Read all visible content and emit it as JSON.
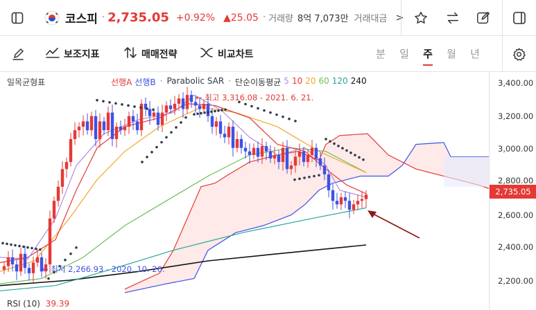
{
  "header": {
    "sidebar_icon": "sidebar-toggle-icon",
    "flag_icon": "korea-flag-icon",
    "symbol": "코스피",
    "price": "2,735.05",
    "change_pct": "+0.92%",
    "change_abs": "▲25.05",
    "sep": "·",
    "volume_label": "거래량",
    "volume_value": "8억 7,073만",
    "amount_label": "거래대금",
    "more_arrow": ">",
    "icons": [
      "star-icon",
      "compare-arrows-icon",
      "edit-icon",
      "panel-icon"
    ]
  },
  "toolbar": {
    "tools": [
      {
        "icon": "pencil-icon",
        "label": ""
      },
      {
        "icon": "indicator-icon",
        "label": "보조지표"
      },
      {
        "icon": "trade-strategy-icon",
        "label": "매매전략"
      },
      {
        "icon": "compare-icon",
        "label": "비교차트"
      }
    ],
    "periods": [
      "분",
      "일",
      "주",
      "월",
      "년"
    ],
    "active_period": "주",
    "settings_icon": "gear-icon"
  },
  "chart": {
    "title": "일목균형표",
    "legend": {
      "ichimoku_a": "선행A",
      "ichimoku_b": "선행B",
      "sep1": "·",
      "sar": "Parabolic SAR",
      "sep2": "·",
      "ma_label": "단순이동평균",
      "ma_periods": [
        "5",
        "10",
        "20",
        "60",
        "120",
        "240"
      ]
    },
    "high_annotation": "← 최고 3,316.08 - 2021. 6. 21.",
    "low_annotation": "← 최저 2,266.93 - 2020. 10. 26.",
    "current_price_tag": "2,735.05",
    "colors": {
      "up": "#e53935",
      "down": "#3f51e5",
      "ma5": "#b58be0",
      "ma10": "#e53935",
      "ma20": "#f4a62a",
      "ma60": "#6bbf59",
      "ma120": "#26a69a",
      "ma240": "#111111",
      "spanA": "#e53935",
      "spanB": "#3f51e5",
      "sar": "#2f3a4a"
    }
  },
  "chart_data": {
    "type": "line",
    "title": "일목균형표",
    "yaxis_ticks": [
      "3,400.00",
      "3,200.00",
      "3,000.00",
      "2,800.00",
      "2,600.00",
      "2,400.00",
      "2,200.00"
    ],
    "ylim": [
      2160,
      3430
    ],
    "last_close": 2735.05,
    "high": {
      "value": 3316.08,
      "date": "2021. 6. 21."
    },
    "low": {
      "value": 2266.93,
      "date": "2020. 10. 26."
    }
  },
  "rsi": {
    "label": "RSI (10)",
    "value": "39.39"
  }
}
